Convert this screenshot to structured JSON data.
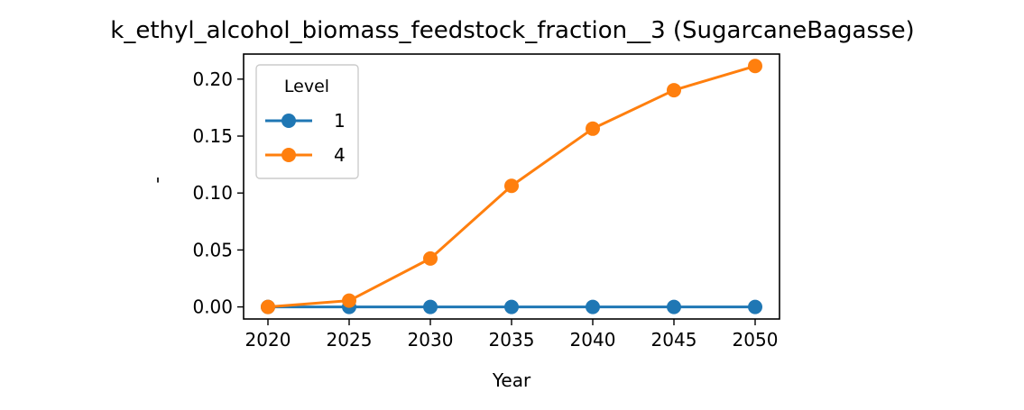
{
  "chart_data": {
    "type": "line",
    "title": "k_ethyl_alcohol_biomass_feedstock_fraction__3 (SugarcaneBagasse)",
    "xlabel": "Year",
    "ylabel": "'",
    "x": [
      2020,
      2025,
      2030,
      2035,
      2040,
      2045,
      2050
    ],
    "xticks": [
      2020,
      2025,
      2030,
      2035,
      2040,
      2045,
      2050
    ],
    "yticks": [
      0.0,
      0.05,
      0.1,
      0.15,
      0.2
    ],
    "ytick_labels": [
      "0.00",
      "0.05",
      "0.10",
      "0.15",
      "0.20"
    ],
    "xlim": [
      2018.5,
      2051.5
    ],
    "ylim": [
      -0.0106,
      0.222
    ],
    "grid": false,
    "legend": {
      "title": "Level",
      "placement": "top-left"
    },
    "series": [
      {
        "name": "1",
        "color": "#1f77b4",
        "marker": "circle",
        "values": [
          0.0,
          0.0,
          0.0,
          0.0,
          0.0,
          0.0,
          0.0
        ]
      },
      {
        "name": "4",
        "color": "#ff7f0e",
        "marker": "circle",
        "values": [
          0.0,
          0.0055,
          0.0425,
          0.1063,
          0.1565,
          0.1903,
          0.2115
        ]
      }
    ]
  }
}
